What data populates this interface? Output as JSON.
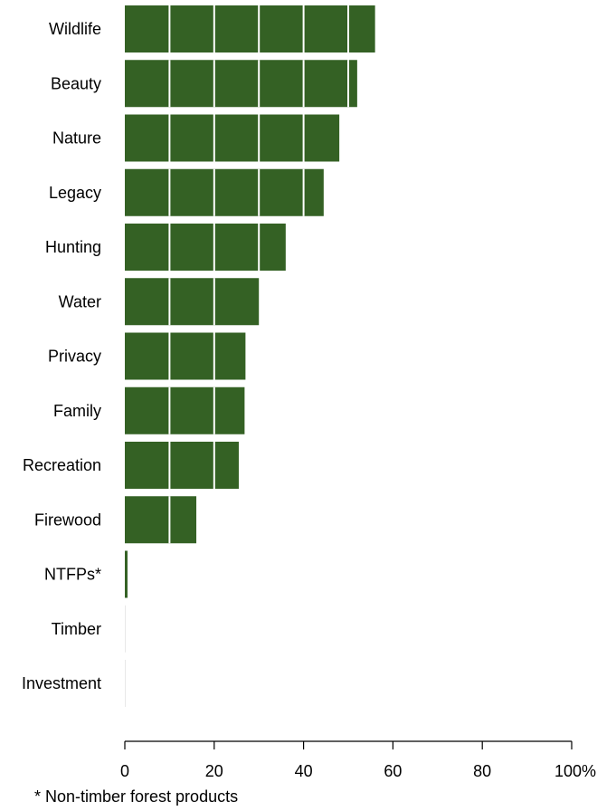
{
  "chart_data": {
    "type": "bar",
    "orientation": "horizontal",
    "categories": [
      "Wildlife",
      "Beauty",
      "Nature",
      "Legacy",
      "Hunting",
      "Water",
      "Privacy",
      "Family",
      "Recreation",
      "Firewood",
      "NTFPs*",
      "Timber",
      "Investment"
    ],
    "values": [
      56,
      52,
      48,
      44.5,
      36,
      30,
      27,
      26.8,
      25.5,
      16,
      0.6,
      0.1,
      0.1
    ],
    "xlim": [
      0,
      100
    ],
    "xticks": [
      "0",
      "20",
      "40",
      "60",
      "80",
      "100%"
    ],
    "grid": "vertical white lines inside bars every 10",
    "bar_color": "#346124",
    "footnote": "* Non-timber forest products"
  }
}
